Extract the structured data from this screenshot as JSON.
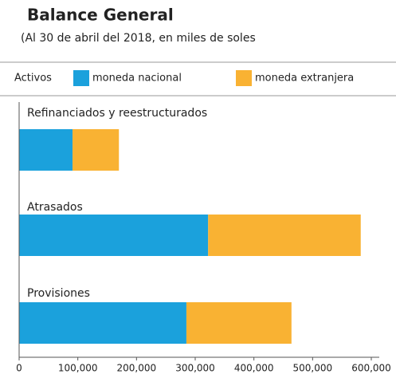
{
  "chart_data": {
    "type": "stacked-barh",
    "title": "Balance General",
    "subtitle": "(Al 30 de abril del 2018, en miles de soles",
    "legend_title": "Activos",
    "categories": [
      "Refinanciados y reestructurados",
      "Atrasados",
      "Provisiones"
    ],
    "series": [
      {
        "name": "moneda nacional",
        "color": "#1ba1dc",
        "values": [
          91000,
          322000,
          285000
        ]
      },
      {
        "name": "moneda extranjera",
        "color": "#f9b233",
        "values": [
          79000,
          260000,
          179000
        ]
      }
    ],
    "xlim": [
      0,
      600000
    ],
    "xticks": [
      0,
      {
        "value": 100000,
        "label": "100,000"
      },
      {
        "value": 200000,
        "label": "200,000"
      },
      {
        "value": 300000,
        "label": "300,000"
      },
      {
        "value": 400000,
        "label": "400,000"
      },
      {
        "value": 500000,
        "label": "500,000"
      },
      {
        "value": 600000,
        "label": "600,000"
      }
    ],
    "legend_position": "top"
  }
}
